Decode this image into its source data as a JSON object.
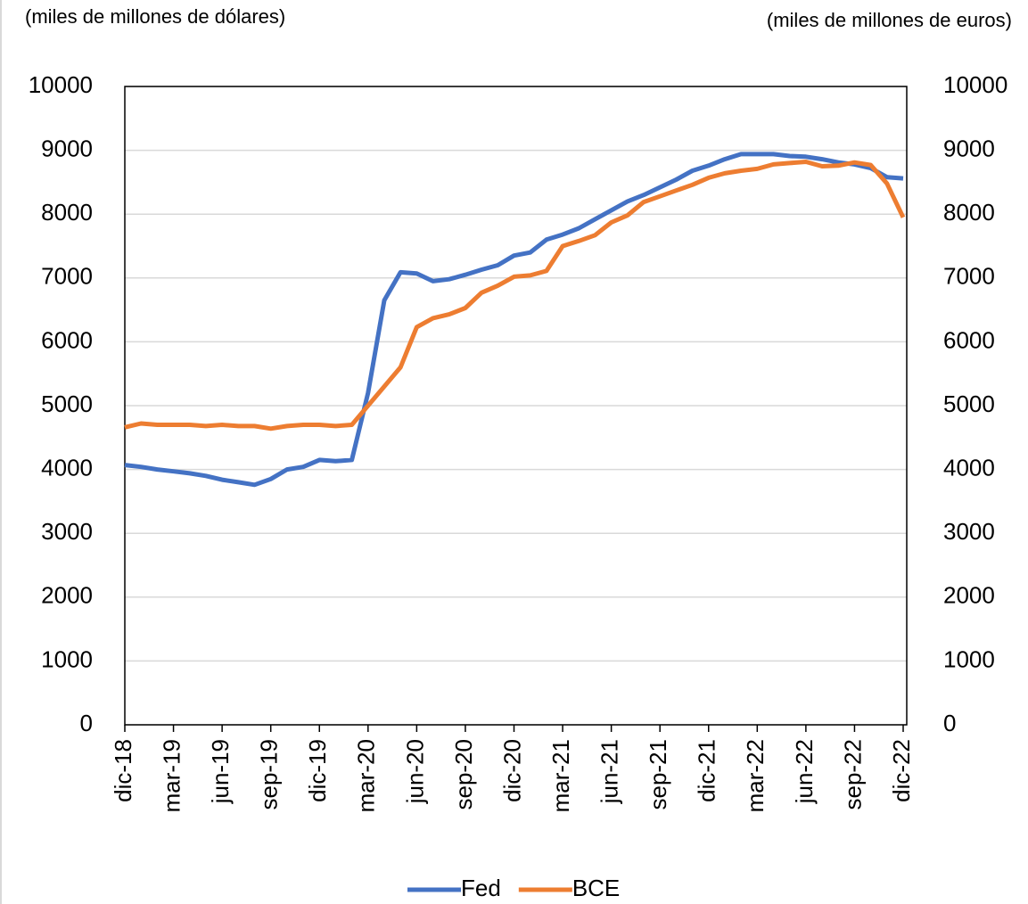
{
  "chart_data": {
    "type": "line",
    "y_label": "(miles de millones de dólares)",
    "y2_label": "(miles de millones de euros)",
    "categories": [
      "dic-18",
      null,
      null,
      "mar-19",
      null,
      null,
      "jun-19",
      null,
      null,
      "sep-19",
      null,
      null,
      "dic-19",
      null,
      null,
      "mar-20",
      null,
      null,
      "jun-20",
      null,
      null,
      "sep-20",
      null,
      null,
      "dic-20",
      null,
      null,
      "mar-21",
      null,
      null,
      "jun-21",
      null,
      null,
      "sep-21",
      null,
      null,
      "dic-21",
      null,
      null,
      "mar-22",
      null,
      null,
      "jun-22",
      null,
      null,
      "sep-22",
      null,
      null,
      "dic-22"
    ],
    "series": [
      {
        "name": "Fed",
        "color": "#4472c4",
        "values": [
          4070,
          4040,
          4000,
          3970,
          3940,
          3900,
          3840,
          3800,
          3760,
          3850,
          4000,
          4040,
          4150,
          4130,
          4150,
          5200,
          6650,
          7090,
          7070,
          6950,
          6980,
          7050,
          7130,
          7200,
          7350,
          7400,
          7600,
          7680,
          7780,
          7920,
          8060,
          8200,
          8300,
          8420,
          8540,
          8680,
          8760,
          8860,
          8940,
          8940,
          8940,
          8910,
          8900,
          8860,
          8810,
          8780,
          8720,
          8580,
          8560
        ]
      },
      {
        "name": "BCE",
        "color": "#ed7d31",
        "axis": "y2",
        "values": [
          4660,
          4720,
          4700,
          4700,
          4700,
          4680,
          4700,
          4680,
          4680,
          4640,
          4680,
          4700,
          4700,
          4680,
          4700,
          5000,
          5300,
          5600,
          6230,
          6370,
          6430,
          6530,
          6770,
          6880,
          7020,
          7040,
          7110,
          7500,
          7580,
          7670,
          7870,
          7980,
          8190,
          8280,
          8370,
          8460,
          8570,
          8640,
          8680,
          8710,
          8780,
          8800,
          8820,
          8750,
          8760,
          8810,
          8770,
          8480,
          7950
        ]
      }
    ],
    "ylim": [
      0,
      10000
    ],
    "yticks": [
      0,
      1000,
      2000,
      3000,
      4000,
      5000,
      6000,
      7000,
      8000,
      9000,
      10000
    ],
    "y2lim": [
      0,
      10000
    ],
    "y2ticks": [
      0,
      1000,
      2000,
      3000,
      4000,
      5000,
      6000,
      7000,
      8000,
      9000,
      10000
    ],
    "grid": true,
    "legend": "bottom"
  }
}
